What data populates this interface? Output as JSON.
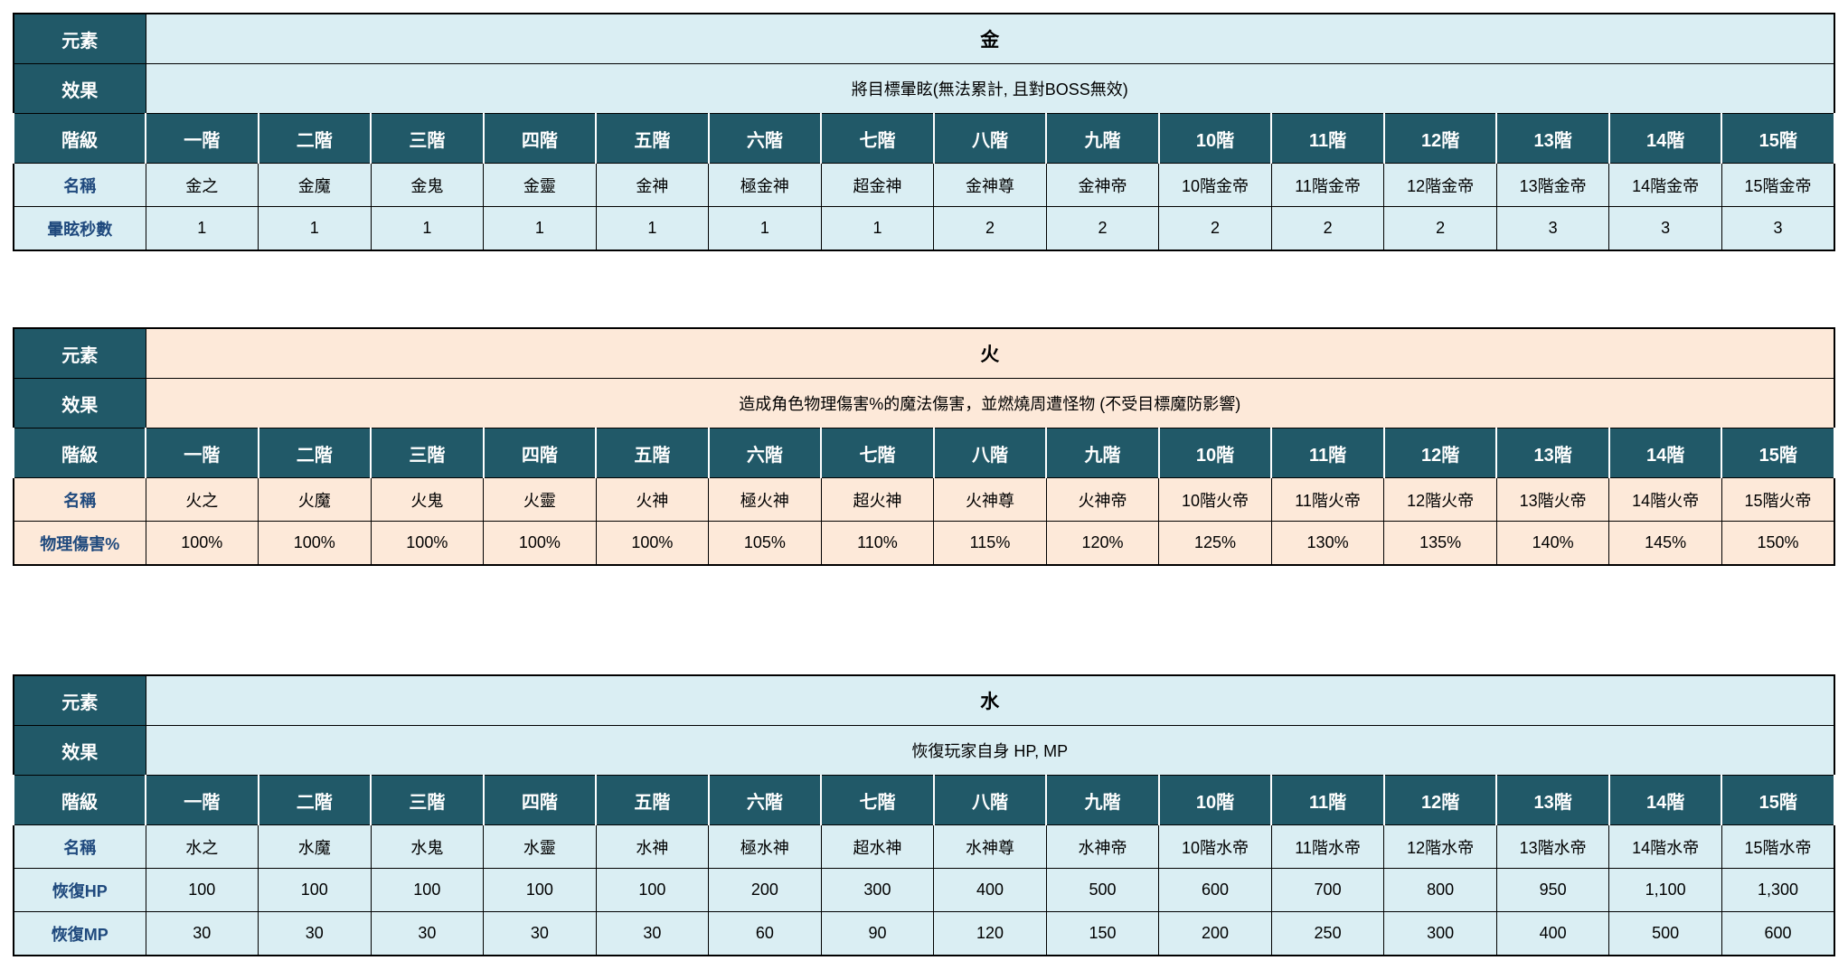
{
  "colors": {
    "header_bg": "#215968",
    "header_text": "#FFFFFF",
    "gold_water_row_bg": "#DAEEF3",
    "fire_row_bg": "#FDE9D9",
    "row_label_text": "#1F497D",
    "border": "#000000",
    "page_bg": "#FFFFFF"
  },
  "labels": {
    "element": "元素",
    "effect": "效果",
    "tier": "階級",
    "name": "名稱"
  },
  "tiers": [
    "一階",
    "二階",
    "三階",
    "四階",
    "五階",
    "六階",
    "七階",
    "八階",
    "九階",
    "10階",
    "11階",
    "12階",
    "13階",
    "14階",
    "15階"
  ],
  "tables": [
    {
      "element": "金",
      "effect": "將目標暈眩(無法累計, 且對BOSS無效)",
      "theme": "#DAEEF3",
      "names": [
        "金之",
        "金魔",
        "金鬼",
        "金靈",
        "金神",
        "極金神",
        "超金神",
        "金神尊",
        "金神帝",
        "10階金帝",
        "11階金帝",
        "12階金帝",
        "13階金帝",
        "14階金帝",
        "15階金帝"
      ],
      "stats": [
        {
          "label": "暈眩秒數",
          "values": [
            "1",
            "1",
            "1",
            "1",
            "1",
            "1",
            "1",
            "2",
            "2",
            "2",
            "2",
            "2",
            "3",
            "3",
            "3"
          ]
        }
      ]
    },
    {
      "element": "火",
      "effect": "造成角色物理傷害%的魔法傷害，並燃燒周遭怪物 (不受目標魔防影響)",
      "theme": "#FDE9D9",
      "names": [
        "火之",
        "火魔",
        "火鬼",
        "火靈",
        "火神",
        "極火神",
        "超火神",
        "火神尊",
        "火神帝",
        "10階火帝",
        "11階火帝",
        "12階火帝",
        "13階火帝",
        "14階火帝",
        "15階火帝"
      ],
      "stats": [
        {
          "label": "物理傷害%",
          "values": [
            "100%",
            "100%",
            "100%",
            "100%",
            "100%",
            "105%",
            "110%",
            "115%",
            "120%",
            "125%",
            "130%",
            "135%",
            "140%",
            "145%",
            "150%"
          ]
        }
      ]
    },
    {
      "element": "水",
      "effect": "恢復玩家自身 HP, MP",
      "theme": "#DAEEF3",
      "names": [
        "水之",
        "水魔",
        "水鬼",
        "水靈",
        "水神",
        "極水神",
        "超水神",
        "水神尊",
        "水神帝",
        "10階水帝",
        "11階水帝",
        "12階水帝",
        "13階水帝",
        "14階水帝",
        "15階水帝"
      ],
      "stats": [
        {
          "label": "恢復HP",
          "values": [
            "100",
            "100",
            "100",
            "100",
            "100",
            "200",
            "300",
            "400",
            "500",
            "600",
            "700",
            "800",
            "950",
            "1,100",
            "1,300"
          ]
        },
        {
          "label": "恢復MP",
          "values": [
            "30",
            "30",
            "30",
            "30",
            "30",
            "60",
            "90",
            "120",
            "150",
            "200",
            "250",
            "300",
            "400",
            "500",
            "600"
          ]
        }
      ]
    }
  ]
}
